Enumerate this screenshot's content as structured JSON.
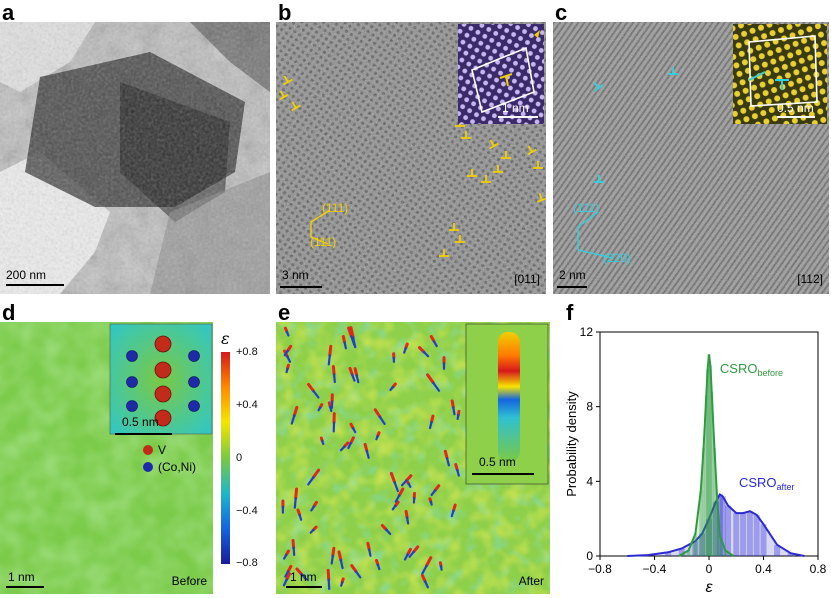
{
  "panels": {
    "a": {
      "label": "a",
      "scale_bar": "200 nm"
    },
    "b": {
      "label": "b",
      "scale_bar": "3 nm",
      "inset_scale_bar": "1 nm",
      "zone_axis": "[011]",
      "plane_1": "(111)",
      "plane_2": "(111)"
    },
    "c": {
      "label": "c",
      "scale_bar": "2 nm",
      "inset_scale_bar": "0.5 nm",
      "zone_axis": "[112]",
      "plane_1": "(111)",
      "plane_2": "(220)"
    },
    "d": {
      "label": "d",
      "scale_bar": "1 nm",
      "inset_scale_bar": "0.5 nm",
      "legend_v": "V",
      "legend_coni": "(Co,Ni)",
      "state": "Before"
    },
    "e": {
      "label": "e",
      "scale_bar": "1 nm",
      "inset_scale_bar": "0.5 nm",
      "state": "After"
    },
    "f": {
      "label": "f"
    }
  },
  "colorbar": {
    "symbol": "ε",
    "ticks": [
      "+0.8",
      "+0.4",
      "0",
      "−0.4",
      "−0.8"
    ],
    "colors": [
      "#d7191c",
      "#ff8c00",
      "#f5e500",
      "#7ac943",
      "#1fb5c9",
      "#1565e0",
      "#1a1a9c"
    ]
  },
  "colors": {
    "annot_b": "#f0d000",
    "annot_c": "#30d0e0",
    "before": "#2e9b3e",
    "after": "#2a2ad0"
  },
  "chart_data": {
    "type": "area",
    "xlabel": "ε",
    "ylabel": "Probability density",
    "xlim": [
      -0.8,
      0.8
    ],
    "ylim": [
      0,
      12
    ],
    "xticks": [
      "−0.8",
      "−0.4",
      "0",
      "0.4",
      "0.8"
    ],
    "xtick_values": [
      -0.8,
      -0.4,
      0,
      0.4,
      0.8
    ],
    "yticks": [
      "0",
      "4",
      "8",
      "12"
    ],
    "ytick_values": [
      0,
      4,
      8,
      12
    ],
    "series": [
      {
        "name": "CSRO_before",
        "label_main": "CSRO",
        "label_sub": "before",
        "x": [
          -0.22,
          -0.15,
          -0.1,
          -0.06,
          -0.04,
          -0.02,
          -0.01,
          0.0,
          0.01,
          0.02,
          0.04,
          0.06,
          0.08,
          0.12,
          0.18
        ],
        "y": [
          0.0,
          0.3,
          1.2,
          3.5,
          5.8,
          8.6,
          10.0,
          10.8,
          10.2,
          8.8,
          5.8,
          3.0,
          1.1,
          0.3,
          0.0
        ]
      },
      {
        "name": "CSRO_after",
        "label_main": "CSRO",
        "label_sub": "after",
        "x": [
          -0.6,
          -0.45,
          -0.3,
          -0.2,
          -0.1,
          -0.05,
          0.0,
          0.05,
          0.08,
          0.1,
          0.14,
          0.2,
          0.25,
          0.3,
          0.35,
          0.4,
          0.5,
          0.6,
          0.7
        ],
        "y": [
          0.0,
          0.05,
          0.2,
          0.4,
          0.8,
          1.2,
          2.0,
          2.9,
          3.3,
          3.2,
          2.7,
          2.3,
          2.3,
          2.4,
          2.2,
          1.7,
          0.6,
          0.15,
          0.0
        ]
      }
    ]
  }
}
